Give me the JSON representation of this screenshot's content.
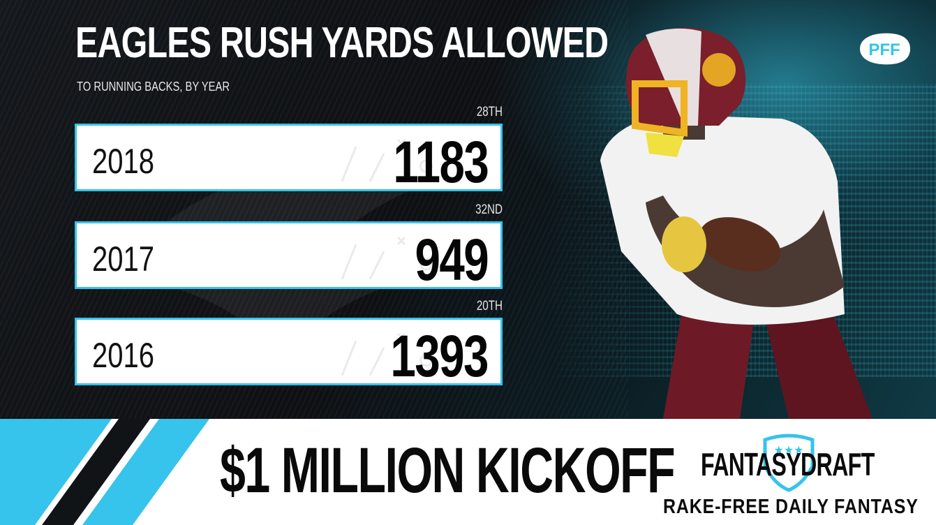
{
  "header": {
    "title": "EAGLES RUSH YARDS ALLOWED",
    "subtitle": "TO RUNNING BACKS, BY YEAR",
    "brand_logo_text": "PFF"
  },
  "rows": [
    {
      "rank": "28TH",
      "year": "2018",
      "yards": "1183"
    },
    {
      "rank": "32ND",
      "year": "2017",
      "yards": "949"
    },
    {
      "rank": "20TH",
      "year": "2016",
      "yards": "1393"
    }
  ],
  "banner": {
    "headline": "$1 MILLION KICKOFF",
    "sponsor_logo": "FANTASYDRAFT",
    "tagline": "RAKE-FREE DAILY FANTASY"
  },
  "colors": {
    "accent": "#36c3ec",
    "jersey": "#7a1f2b",
    "helmet_stripe": "#f0b323"
  },
  "icons": [
    "pff-logo-icon",
    "eagle-watermark-icon",
    "fantasydraft-shield-icon",
    "player-photo"
  ]
}
